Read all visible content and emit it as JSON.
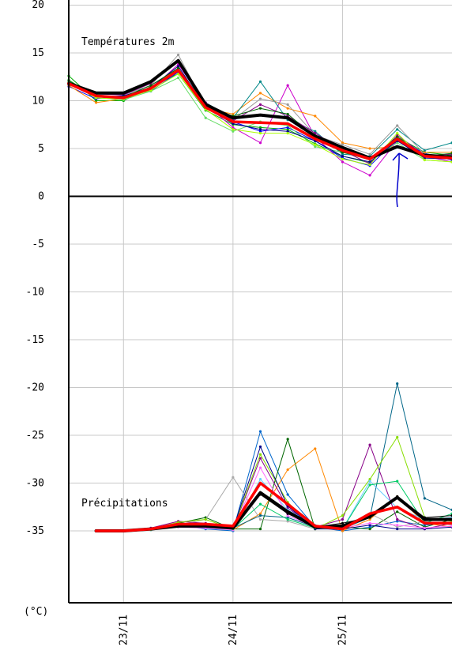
{
  "chart_data": {
    "type": "line",
    "unit_label": "(°C)",
    "ylim": [
      -43,
      20
    ],
    "xlim": [
      22.5,
      26.0
    ],
    "grid": true,
    "y_ticks": [
      "20",
      "15",
      "10",
      "5",
      "0",
      "-5",
      "-10",
      "-15",
      "-20",
      "-25",
      "-30",
      "-35"
    ],
    "y_tick_values": [
      20,
      15,
      10,
      5,
      0,
      -5,
      -10,
      -15,
      -20,
      -25,
      -30,
      -35
    ],
    "x_ticks": [
      "23/11",
      "24/11",
      "25/11"
    ],
    "x_tick_values": [
      23.0,
      24.0,
      25.0
    ],
    "panels": [
      {
        "label": "Températures 2m",
        "x": [
          22.5,
          22.75,
          23.0,
          23.25,
          23.5,
          23.75,
          24.0,
          24.25,
          24.5,
          24.75,
          25.0,
          25.25,
          25.5,
          25.75,
          26.0
        ],
        "main": [
          11.8,
          10.5,
          10.3,
          11.3,
          13.2,
          9.3,
          7.8,
          7.7,
          7.6,
          6.0,
          4.8,
          3.9,
          6.0,
          4.2,
          4.0
        ],
        "mean": [
          11.8,
          10.8,
          10.8,
          12.0,
          14.2,
          9.6,
          8.2,
          8.5,
          8.2,
          6.3,
          5.1,
          4.0,
          5.2,
          4.3,
          4.1
        ],
        "members": [
          {
            "color": "#00aa00",
            "values": [
              12.6,
              10.0,
              10.0,
              11.5,
              12.8,
              9.0,
              7.5,
              7.2,
              7.0,
              5.5,
              4.2,
              3.5,
              6.2,
              4.6,
              4.3
            ]
          },
          {
            "color": "#0000ff",
            "values": [
              11.5,
              10.2,
              10.5,
              11.0,
              13.0,
              9.5,
              7.8,
              6.8,
              7.2,
              5.8,
              4.0,
              3.2,
              6.0,
              4.5,
              3.8
            ]
          },
          {
            "color": "#cc00cc",
            "values": [
              11.8,
              10.4,
              10.3,
              11.2,
              13.8,
              9.6,
              7.2,
              5.6,
              11.6,
              6.2,
              3.6,
              2.2,
              5.8,
              4.2,
              3.6
            ]
          },
          {
            "color": "#ff8800",
            "values": [
              11.6,
              9.8,
              10.2,
              11.4,
              13.4,
              9.2,
              8.6,
              10.8,
              9.2,
              8.4,
              5.6,
              5.0,
              5.2,
              4.6,
              4.6
            ]
          },
          {
            "color": "#008888",
            "values": [
              12.0,
              10.6,
              10.4,
              11.2,
              13.2,
              9.8,
              8.2,
              12.0,
              8.0,
              6.8,
              4.4,
              4.2,
              7.0,
              4.8,
              5.6
            ]
          },
          {
            "color": "#999999",
            "values": [
              11.8,
              10.8,
              10.6,
              11.6,
              14.8,
              9.4,
              8.0,
              10.2,
              9.6,
              6.4,
              5.4,
              4.4,
              7.4,
              4.4,
              4.2
            ]
          },
          {
            "color": "#66dd66",
            "values": [
              12.2,
              10.3,
              10.1,
              11.0,
              12.4,
              8.2,
              6.8,
              7.8,
              7.4,
              5.2,
              4.6,
              3.8,
              5.6,
              3.8,
              3.6
            ]
          },
          {
            "color": "#880088",
            "values": [
              11.9,
              10.7,
              10.6,
              11.8,
              14.2,
              9.8,
              7.9,
              9.6,
              8.4,
              6.6,
              4.8,
              3.4,
              6.4,
              4.3,
              4.4
            ]
          },
          {
            "color": "#000088",
            "values": [
              11.7,
              10.4,
              10.5,
              11.4,
              13.6,
              9.3,
              7.6,
              7.0,
              6.8,
              5.8,
              4.2,
              3.6,
              5.8,
              4.0,
              3.9
            ]
          },
          {
            "color": "#aaff00",
            "values": [
              11.9,
              10.3,
              10.2,
              11.1,
              12.8,
              9.1,
              7.0,
              6.6,
              6.6,
              5.4,
              3.9,
              3.3,
              6.6,
              3.8,
              3.6
            ]
          },
          {
            "color": "#006600",
            "values": [
              12.1,
              10.5,
              10.4,
              11.6,
              13.4,
              9.4,
              8.4,
              9.2,
              8.6,
              6.2,
              4.6,
              3.9,
              6.2,
              4.2,
              4.5
            ]
          }
        ]
      },
      {
        "label": "Précipitations",
        "x": [
          22.75,
          23.0,
          23.25,
          23.5,
          23.75,
          24.0,
          24.25,
          24.5,
          24.75,
          25.0,
          25.25,
          25.5,
          25.75,
          26.0
        ],
        "main": [
          -35.0,
          -35.0,
          -34.8,
          -34.3,
          -34.3,
          -34.5,
          -30.0,
          -32.2,
          -34.5,
          -34.8,
          -33.2,
          -32.5,
          -34.2,
          -34.2
        ],
        "mean": [
          -35.0,
          -35.0,
          -34.8,
          -34.5,
          -34.5,
          -34.7,
          -31.0,
          -33.0,
          -34.6,
          -34.5,
          -33.5,
          -31.5,
          -33.8,
          -33.8
        ],
        "members": [
          {
            "color": "#0066cc",
            "values": [
              -35.0,
              -35.0,
              -34.9,
              -34.4,
              -34.8,
              -35.0,
              -24.6,
              -31.2,
              -34.6,
              -35.0,
              -34.6,
              -34.0,
              -34.4,
              -34.2
            ]
          },
          {
            "color": "#006600",
            "values": [
              -35.0,
              -35.0,
              -34.8,
              -34.2,
              -33.6,
              -34.8,
              -34.8,
              -25.4,
              -34.8,
              -34.6,
              -34.8,
              -33.0,
              -34.6,
              -33.8
            ]
          },
          {
            "color": "#ff8800",
            "values": [
              -35.0,
              -35.0,
              -34.9,
              -34.6,
              -34.2,
              -34.9,
              -33.2,
              -28.6,
              -26.4,
              -35.0,
              -33.8,
              -31.4,
              -34.2,
              -34.6
            ]
          },
          {
            "color": "#006688",
            "values": [
              -35.0,
              -35.0,
              -34.8,
              -34.3,
              -34.4,
              -34.7,
              -33.4,
              -33.6,
              -34.6,
              -34.8,
              -33.6,
              -19.6,
              -31.6,
              -32.8
            ]
          },
          {
            "color": "#aaaaaa",
            "values": [
              -35.0,
              -35.0,
              -34.9,
              -34.4,
              -33.8,
              -29.4,
              -33.8,
              -34.0,
              -34.8,
              -34.6,
              -33.2,
              -34.6,
              -34.0,
              -34.4
            ]
          },
          {
            "color": "#880088",
            "values": [
              -35.0,
              -35.0,
              -34.7,
              -34.0,
              -34.2,
              -34.8,
              -27.4,
              -32.6,
              -34.6,
              -33.8,
              -26.0,
              -33.8,
              -34.8,
              -34.2
            ]
          },
          {
            "color": "#88dd00",
            "values": [
              -35.0,
              -35.0,
              -34.8,
              -34.1,
              -33.8,
              -34.8,
              -27.0,
              -32.0,
              -34.8,
              -33.4,
              -29.6,
              -25.2,
              -33.6,
              -34.0
            ]
          },
          {
            "color": "#66ccff",
            "values": [
              -35.0,
              -35.0,
              -34.9,
              -34.5,
              -34.6,
              -34.9,
              -29.6,
              -32.8,
              -34.4,
              -34.8,
              -29.8,
              -32.6,
              -33.8,
              -33.6
            ]
          },
          {
            "color": "#000088",
            "values": [
              -35.0,
              -35.0,
              -34.8,
              -34.4,
              -34.6,
              -34.8,
              -26.2,
              -32.4,
              -34.8,
              -34.8,
              -34.4,
              -34.8,
              -34.8,
              -34.6
            ]
          },
          {
            "color": "#ff66ff",
            "values": [
              -35.0,
              -35.0,
              -34.9,
              -34.6,
              -34.7,
              -34.9,
              -28.4,
              -33.4,
              -34.6,
              -34.7,
              -34.2,
              -34.4,
              -34.7,
              -34.5
            ]
          },
          {
            "color": "#00cc66",
            "values": [
              -35.0,
              -35.0,
              -34.9,
              -34.3,
              -34.5,
              -34.8,
              -32.2,
              -33.8,
              -34.7,
              -34.8,
              -30.2,
              -29.8,
              -34.2,
              -33.2
            ]
          },
          {
            "color": "#000000",
            "values": [
              -35.0,
              -35.0,
              -34.8,
              -34.4,
              -34.4,
              -34.6,
              -31.2,
              -33.2,
              -34.6,
              -34.2,
              -33.6,
              -31.4,
              -33.6,
              -33.4
            ]
          }
        ]
      }
    ]
  }
}
